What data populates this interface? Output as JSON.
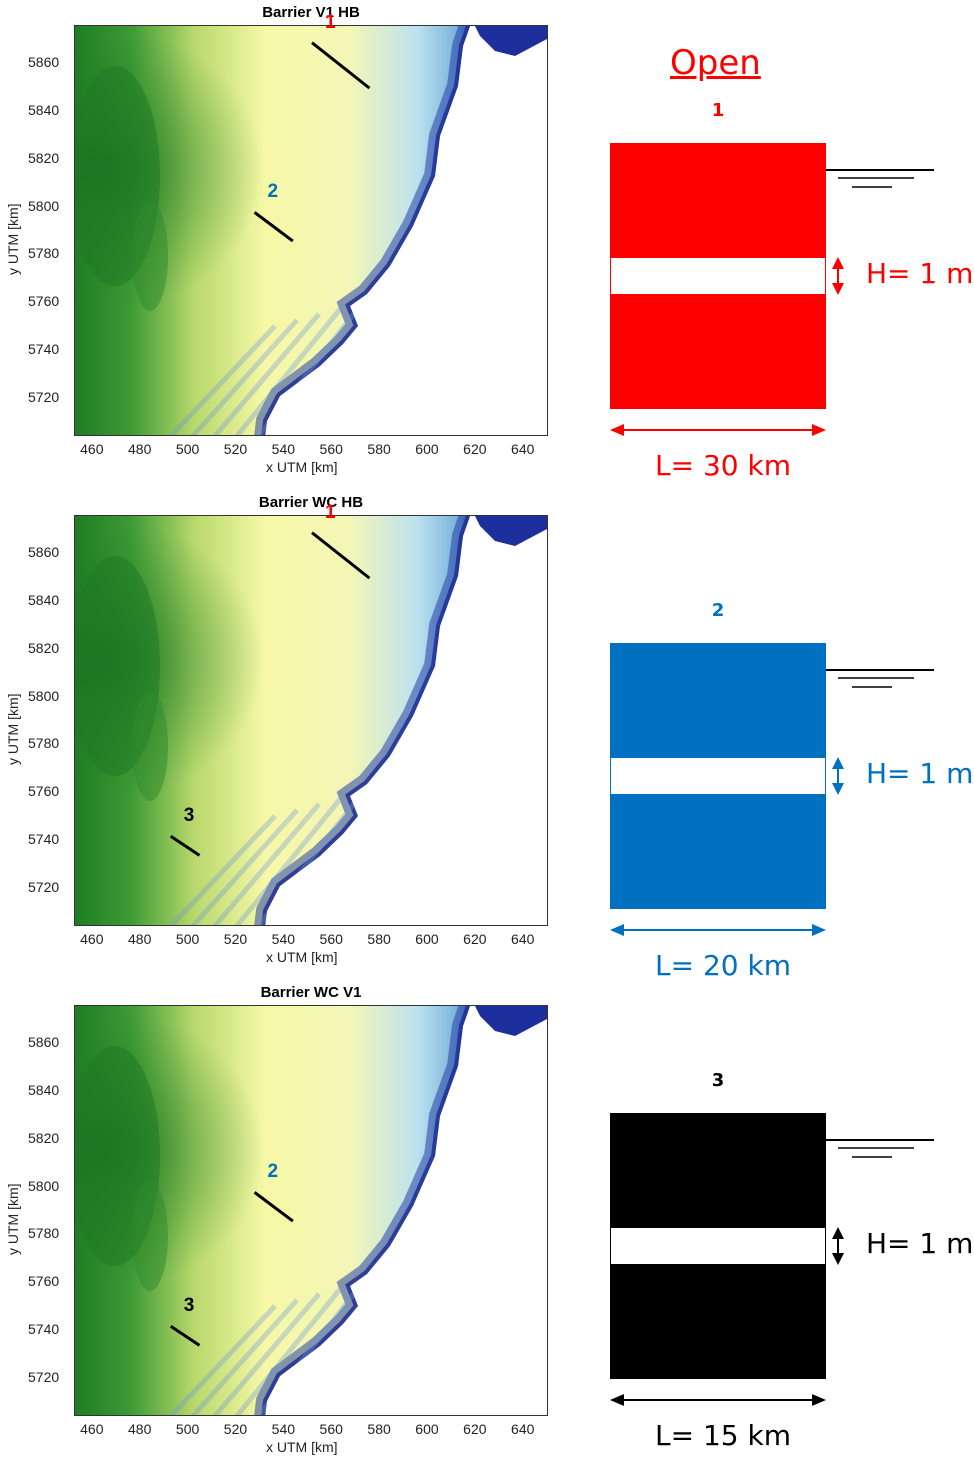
{
  "colors": {
    "barrier_1": "#ff0000",
    "barrier_2": "#0070c0",
    "barrier_3": "#000000",
    "land": "#ffffff",
    "deep_green": "#1d7d22",
    "shallow_yellow": "#f6f8a6",
    "sea_light": "#bde2ef",
    "sea_dark": "#1c2f9c"
  },
  "axes": {
    "xlabel": "x UTM [km]",
    "ylabel": "y UTM [km]",
    "x_ticks": [
      "460",
      "480",
      "500",
      "520",
      "540",
      "560",
      "580",
      "600",
      "620",
      "640"
    ],
    "y_ticks": [
      "5860",
      "5840",
      "5820",
      "5800",
      "5780",
      "5760",
      "5740",
      "5720"
    ]
  },
  "maps": [
    {
      "title": "Barrier V1 HB",
      "barriers": [
        {
          "id": "1",
          "from": [
            551,
            5869
          ],
          "to": [
            575,
            5850
          ],
          "color": "#ff0000"
        },
        {
          "id": "2",
          "from": [
            527,
            5798
          ],
          "to": [
            543,
            5786
          ],
          "color": "#0070c0"
        }
      ]
    },
    {
      "title": "Barrier WC HB",
      "barriers": [
        {
          "id": "1",
          "from": [
            551,
            5869
          ],
          "to": [
            575,
            5850
          ],
          "color": "#ff0000"
        },
        {
          "id": "3",
          "from": [
            492,
            5742
          ],
          "to": [
            504,
            5734
          ],
          "color": "#000000"
        }
      ]
    },
    {
      "title": "Barrier WC V1",
      "barriers": [
        {
          "id": "2",
          "from": [
            527,
            5798
          ],
          "to": [
            543,
            5786
          ],
          "color": "#0070c0"
        },
        {
          "id": "3",
          "from": [
            492,
            5742
          ],
          "to": [
            504,
            5734
          ],
          "color": "#000000"
        }
      ]
    }
  ],
  "schematics": {
    "heading": "Open",
    "items": [
      {
        "number": "1",
        "color": "#ff0000",
        "height_label": "H= 1 m",
        "length_label": "L= 30 km"
      },
      {
        "number": "2",
        "color": "#0070c0",
        "height_label": "H= 1 m",
        "length_label": "L= 20 km"
      },
      {
        "number": "3",
        "color": "#000000",
        "height_label": "H= 1 m",
        "length_label": "L= 15 km"
      }
    ]
  }
}
